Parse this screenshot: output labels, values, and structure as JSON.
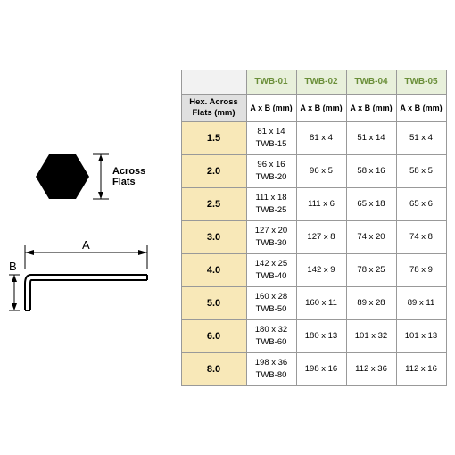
{
  "diagram": {
    "hex_label": "Across\nFlats",
    "dim_a": "A",
    "dim_b": "B",
    "hex_color": "#000000",
    "line_color": "#000000"
  },
  "table": {
    "row_header_label": "Hex. Across Flats (mm)",
    "sub_header": "A x B (mm)",
    "columns": [
      "TWB-01",
      "TWB-02",
      "TWB-04",
      "TWB-05"
    ],
    "header_bg": "#e8f0db",
    "header_fg": "#6b8f3a",
    "size_bg": "#f8e8b8",
    "label_bg": "#e0e0e0",
    "border_color": "#999999",
    "rows": [
      {
        "size": "1.5",
        "cells": [
          "81 x 14\nTWB-15",
          "81 x 4",
          "51 x 14",
          "51 x 4"
        ]
      },
      {
        "size": "2.0",
        "cells": [
          "96 x 16\nTWB-20",
          "96 x 5",
          "58 x 16",
          "58 x 5"
        ]
      },
      {
        "size": "2.5",
        "cells": [
          "111 x 18\nTWB-25",
          "111 x 6",
          "65 x 18",
          "65 x 6"
        ]
      },
      {
        "size": "3.0",
        "cells": [
          "127 x 20\nTWB-30",
          "127 x 8",
          "74 x 20",
          "74 x 8"
        ]
      },
      {
        "size": "4.0",
        "cells": [
          "142 x 25\nTWB-40",
          "142 x 9",
          "78 x 25",
          "78 x 9"
        ]
      },
      {
        "size": "5.0",
        "cells": [
          "160 x 28\nTWB-50",
          "160 x 11",
          "89 x 28",
          "89 x 11"
        ]
      },
      {
        "size": "6.0",
        "cells": [
          "180 x 32\nTWB-60",
          "180 x 13",
          "101 x 32",
          "101 x 13"
        ]
      },
      {
        "size": "8.0",
        "cells": [
          "198 x 36\nTWB-80",
          "198 x 16",
          "112 x 36",
          "112 x 16"
        ]
      }
    ]
  }
}
